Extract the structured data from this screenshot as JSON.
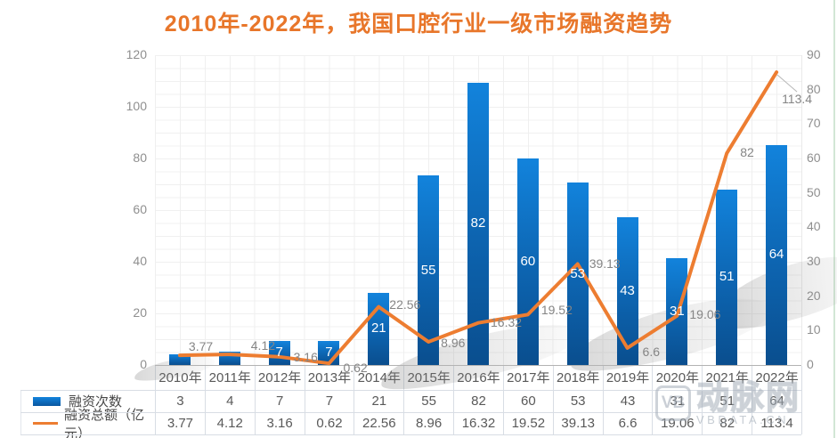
{
  "title": {
    "text": "2010年-2022年，我国口腔行业一级市场融资趋势",
    "color": "#e8762a"
  },
  "chart_data": {
    "type": "combo",
    "categories": [
      "2010年",
      "2011年",
      "2012年",
      "2013年",
      "2014年",
      "2015年",
      "2016年",
      "2017年",
      "2018年",
      "2019年",
      "2020年",
      "2021年",
      "2022年"
    ],
    "series": [
      {
        "name": "融资次数",
        "type": "bar",
        "color": "#0e6fbe",
        "values": [
          3,
          4,
          7,
          7,
          21,
          55,
          82,
          60,
          53,
          43,
          31,
          51,
          64
        ]
      },
      {
        "name": "融资总额（亿元）",
        "type": "line",
        "color": "#ED7D31",
        "values": [
          3.77,
          4.12,
          3.16,
          0.62,
          22.56,
          8.96,
          16.32,
          19.52,
          39.13,
          6.6,
          19.06,
          82,
          113.4
        ]
      }
    ],
    "left_axis": {
      "ticks": [
        0,
        20,
        40,
        60,
        80,
        100,
        120
      ],
      "min": 0,
      "max": 120
    },
    "right_axis": {
      "ticks": [
        0,
        10,
        20,
        30,
        40,
        50,
        60,
        70,
        80,
        90
      ],
      "min": 0,
      "max": 90
    },
    "grid": "on",
    "legend_position": "data-table-left",
    "title": "2010年-2022年，我国口腔行业一级市场融资趋势"
  },
  "table": {
    "row_labels": [
      "融资次数",
      "融资总额（亿元）"
    ]
  },
  "watermark": {
    "badge": "VB",
    "name": "动脉网",
    "sub": "VBDATA.CN"
  }
}
